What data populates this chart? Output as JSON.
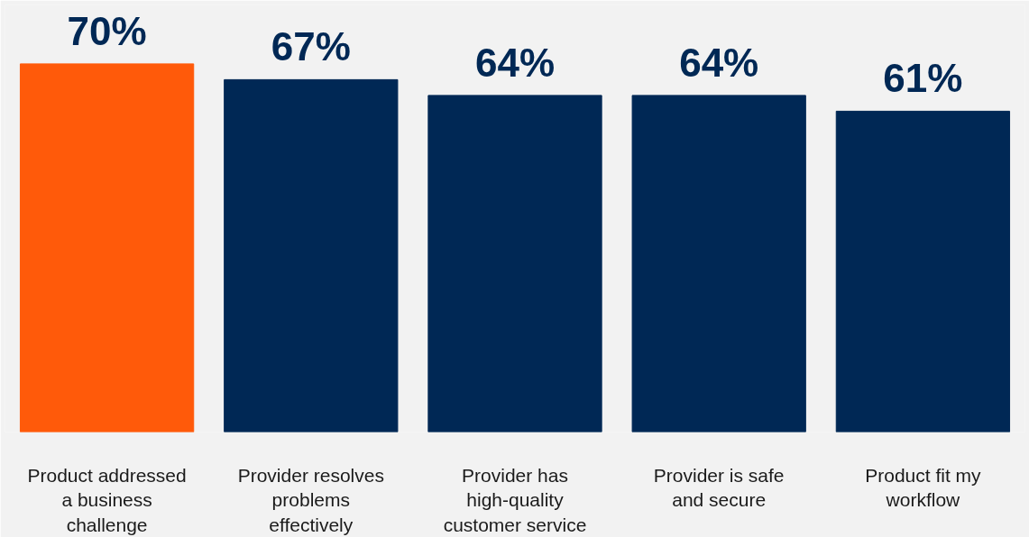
{
  "chart_data": {
    "type": "bar",
    "categories": [
      "Product addressed a business challenge",
      "Provider resolves problems effectively",
      "Provider has high-quality customer service",
      "Provider is safe and secure",
      "Product fit my workflow"
    ],
    "values": [
      70,
      67,
      64,
      64,
      61
    ],
    "colors": [
      "#ff5a0a",
      "#002855",
      "#002855",
      "#002855",
      "#002855"
    ],
    "value_labels": [
      "70%",
      "67%",
      "64%",
      "64%",
      "61%"
    ],
    "grid": false
  }
}
